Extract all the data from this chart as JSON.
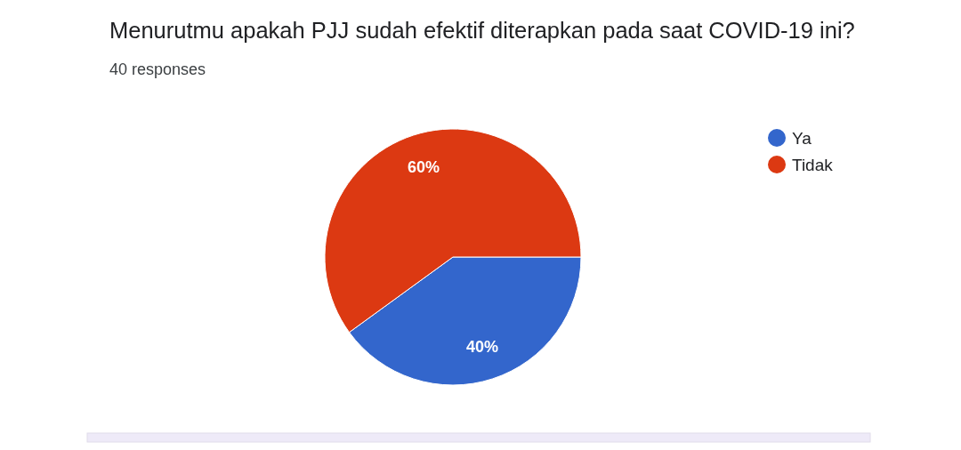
{
  "chart_data": {
    "type": "pie",
    "title": "Menurutmu apakah PJJ sudah efektif diterapkan pada saat COVID-19 ini?",
    "subtitle": "40 responses",
    "categories": [
      "Ya",
      "Tidak"
    ],
    "values": [
      40,
      60
    ],
    "colors": [
      "#3366cc",
      "#dc3912"
    ],
    "value_labels": [
      "40%",
      "60%"
    ],
    "legend": "top right"
  }
}
